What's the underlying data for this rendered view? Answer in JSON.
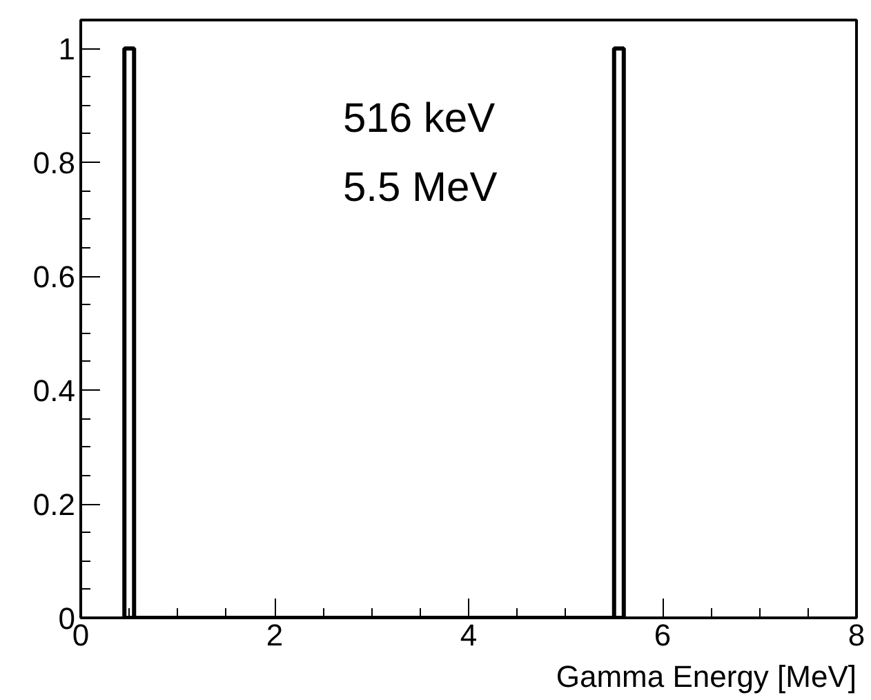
{
  "chart_data": {
    "type": "histogram",
    "xlabel": "Gamma Energy [MeV]",
    "bins": [
      0.45,
      0.55,
      5.5,
      5.6
    ],
    "values": [
      1,
      0,
      1
    ],
    "color": "#000000",
    "xlim": [
      0,
      8
    ],
    "xticks": [
      0,
      2,
      4,
      6,
      8
    ],
    "ylim": [
      0,
      1.05
    ],
    "yticks": [
      0,
      0.2,
      0.4,
      0.6,
      0.8,
      1
    ],
    "annotations": [
      "516 keV",
      "5.5 MeV"
    ],
    "grid": false
  }
}
